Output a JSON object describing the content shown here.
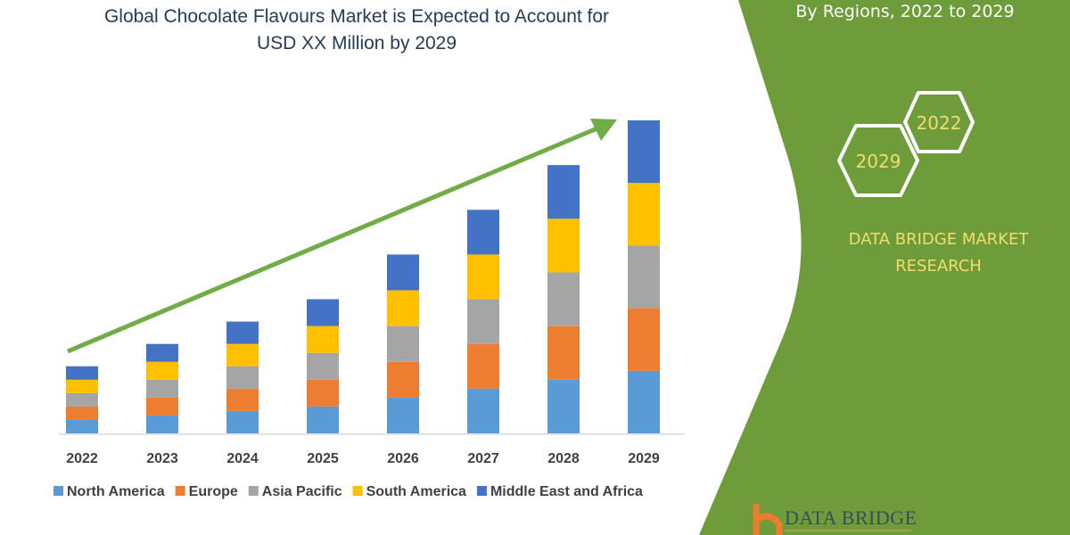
{
  "title": {
    "line1": "Global Chocolate Flavours Market is Expected to Account for",
    "line2": "USD XX Million by 2029"
  },
  "side_panel": {
    "subtitle": "By Regions, 2022 to 2029",
    "hex_start": "2022",
    "hex_end": "2029",
    "brand_line1": "DATA BRIDGE MARKET",
    "brand_line2": "RESEARCH",
    "logo_text": "DATA BRIDGE",
    "color": "#6f9c3b",
    "brand_text_color": "#f2dc6b"
  },
  "chart_data": {
    "type": "bar",
    "stacked": true,
    "title": "Global Chocolate Flavours Market is Expected to Account for USD XX Million by 2029",
    "xlabel": "",
    "ylabel": "",
    "y_axis_shown": false,
    "grid": false,
    "legend_position": "bottom",
    "trend_arrow": true,
    "categories": [
      "2022",
      "2023",
      "2024",
      "2025",
      "2026",
      "2027",
      "2028",
      "2029"
    ],
    "series": [
      {
        "name": "North America",
        "color": "#5b9bd5",
        "values": [
          3,
          4,
          5,
          6,
          8,
          10,
          12,
          14
        ]
      },
      {
        "name": "Europe",
        "color": "#ed7d31",
        "values": [
          3,
          4,
          5,
          6,
          8,
          10,
          12,
          14
        ]
      },
      {
        "name": "Asia Pacific",
        "color": "#a5a5a5",
        "values": [
          3,
          4,
          5,
          6,
          8,
          10,
          12,
          14
        ]
      },
      {
        "name": "South America",
        "color": "#ffc000",
        "values": [
          3,
          4,
          5,
          6,
          8,
          10,
          12,
          14
        ]
      },
      {
        "name": "Middle East and Africa",
        "color": "#4472c4",
        "values": [
          3,
          4,
          5,
          6,
          8,
          10,
          12,
          14
        ]
      }
    ],
    "ylim": [
      0,
      70
    ],
    "arrow_color": "#70ad47"
  }
}
